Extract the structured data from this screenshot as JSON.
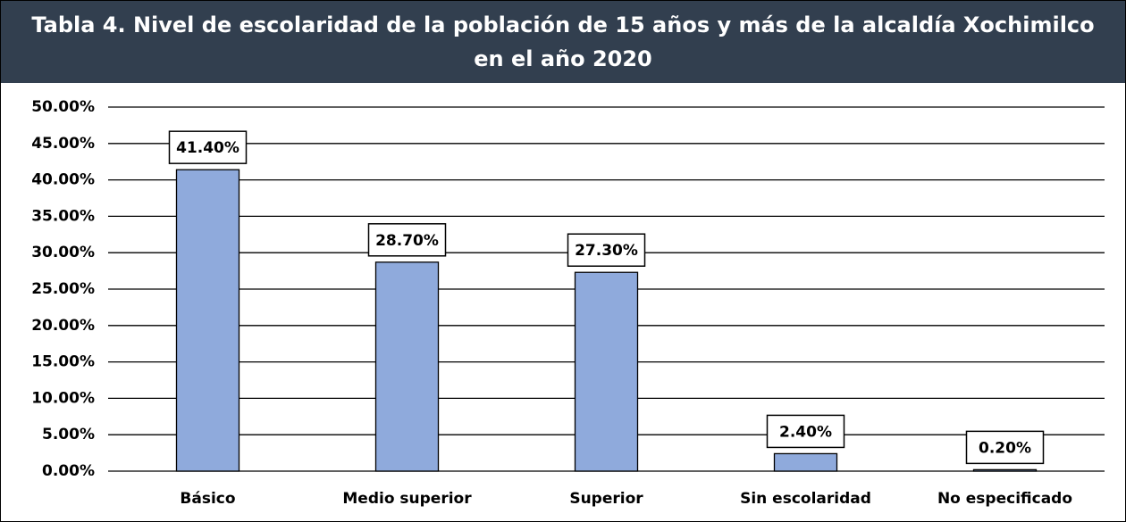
{
  "chart_data": {
    "type": "bar",
    "title": "Tabla 4. Nivel de escolaridad de la población de 15 años y más de la alcaldía Xochimilco en el año 2020",
    "categories": [
      "Básico",
      "Medio superior",
      "Superior",
      "Sin escolaridad",
      "No especificado"
    ],
    "values": [
      41.4,
      28.7,
      27.3,
      2.4,
      0.2
    ],
    "value_labels": [
      "41.40%",
      "28.70%",
      "27.30%",
      "2.40%",
      "0.20%"
    ],
    "color": "#8faadc",
    "ylim": [
      0,
      50
    ],
    "yticks": [
      {
        "value": 0,
        "label": "0.00%"
      },
      {
        "value": 5,
        "label": "5.00%"
      },
      {
        "value": 10,
        "label": "10.00%"
      },
      {
        "value": 15,
        "label": "15.00%"
      },
      {
        "value": 20,
        "label": "20.00%"
      },
      {
        "value": 25,
        "label": "25.00%"
      },
      {
        "value": 30,
        "label": "30.00%"
      },
      {
        "value": 35,
        "label": "35.00%"
      },
      {
        "value": 40,
        "label": "40.00%"
      },
      {
        "value": 45,
        "label": "45.00%"
      },
      {
        "value": 50,
        "label": "50.00%"
      }
    ],
    "grid": true
  }
}
